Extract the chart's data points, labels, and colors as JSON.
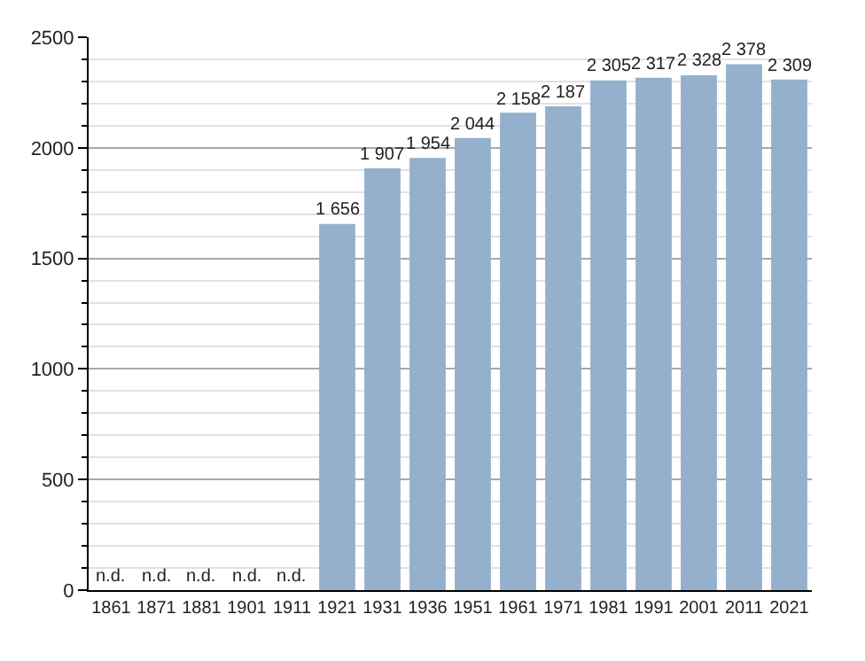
{
  "chart_data": {
    "type": "bar",
    "categories": [
      "1861",
      "1871",
      "1881",
      "1901",
      "1911",
      "1921",
      "1931",
      "1936",
      "1951",
      "1961",
      "1971",
      "1981",
      "1991",
      "2001",
      "2011",
      "2021"
    ],
    "values": [
      null,
      null,
      null,
      null,
      null,
      1656,
      1907,
      1954,
      2044,
      2158,
      2187,
      2305,
      2317,
      2328,
      2378,
      2309
    ],
    "value_labels": [
      "n.d.",
      "n.d.",
      "n.d.",
      "n.d.",
      "n.d.",
      "1 656",
      "1 907",
      "1 954",
      "2 044",
      "2 158",
      "2 187",
      "2 305",
      "2 317",
      "2 328",
      "2 378",
      "2 309"
    ],
    "color": "#95b0cc",
    "ylim": [
      0,
      2500
    ],
    "yticks": [
      0,
      500,
      1000,
      1500,
      2000,
      2500
    ],
    "grid": "y",
    "legend": false
  }
}
